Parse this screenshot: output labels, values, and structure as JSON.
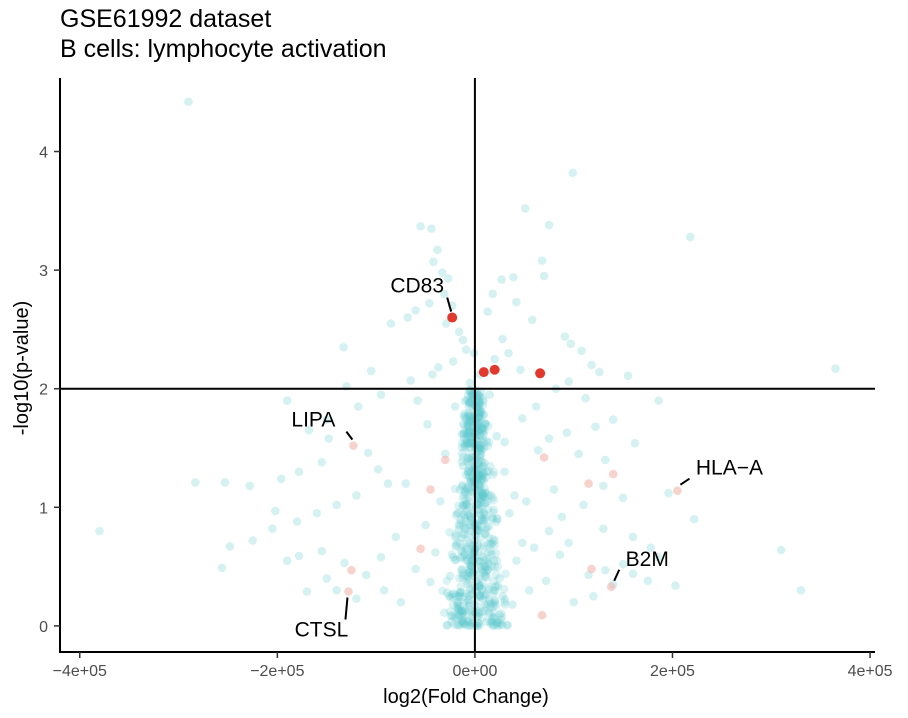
{
  "chart_data": {
    "type": "scatter",
    "title": "GSE61992 dataset",
    "subtitle": "B cells: lymphocyte activation",
    "xlabel": "log2(Fold Change)",
    "ylabel": "-log10(p-value)",
    "xlim": [
      -420000,
      405000
    ],
    "ylim": [
      -0.22,
      4.62
    ],
    "xticks": [
      -400000,
      -200000,
      0,
      200000,
      400000
    ],
    "xtick_labels": [
      "−4e+05",
      "−2e+05",
      "0e+00",
      "2e+05",
      "4e+05"
    ],
    "yticks": [
      0,
      1,
      2,
      3,
      4
    ],
    "ytick_labels": [
      "0",
      "1",
      "2",
      "3",
      "4"
    ],
    "reference_lines": {
      "vertical_x": 0,
      "horizontal_y": 2
    },
    "colors": {
      "background_points": "#5bc8cc",
      "highlight": "#e03a2e",
      "highlight_faint": "#f2b5ae"
    },
    "series": [
      {
        "role": "background",
        "points": [
          [
            -290000,
            4.42
          ],
          [
            99000,
            3.82
          ],
          [
            218000,
            3.28
          ],
          [
            51000,
            3.52
          ],
          [
            75000,
            3.38
          ],
          [
            -55000,
            3.37
          ],
          [
            -44000,
            3.35
          ],
          [
            -38000,
            3.17
          ],
          [
            -42000,
            3.07
          ],
          [
            -33000,
            2.98
          ],
          [
            -27000,
            2.93
          ],
          [
            -31000,
            2.8
          ],
          [
            -46000,
            2.72
          ],
          [
            -60000,
            2.66
          ],
          [
            -68000,
            2.6
          ],
          [
            -85000,
            2.55
          ],
          [
            -29000,
            2.55
          ],
          [
            -23000,
            2.7
          ],
          [
            -16000,
            2.48
          ],
          [
            -12000,
            2.41
          ],
          [
            -133000,
            2.35
          ],
          [
            -9000,
            2.33
          ],
          [
            -22000,
            2.23
          ],
          [
            -105000,
            2.15
          ],
          [
            -43000,
            2.12
          ],
          [
            -65000,
            2.07
          ],
          [
            -95000,
            1.95
          ],
          [
            -130000,
            2.02
          ],
          [
            -118000,
            1.85
          ],
          [
            -150000,
            1.74
          ],
          [
            -190000,
            1.9
          ],
          [
            -168000,
            1.65
          ],
          [
            -148000,
            1.58
          ],
          [
            -108000,
            1.46
          ],
          [
            -98000,
            1.32
          ],
          [
            -155000,
            1.38
          ],
          [
            -178000,
            1.3
          ],
          [
            -196000,
            1.24
          ],
          [
            -88000,
            1.2
          ],
          [
            -120000,
            1.1
          ],
          [
            -140000,
            1.02
          ],
          [
            -160000,
            0.95
          ],
          [
            -180000,
            0.88
          ],
          [
            -205000,
            0.82
          ],
          [
            -225000,
            0.72
          ],
          [
            -248000,
            0.67
          ],
          [
            -256000,
            0.49
          ],
          [
            -283000,
            1.21
          ],
          [
            -253000,
            1.21
          ],
          [
            -228000,
            1.18
          ],
          [
            -202000,
            0.97
          ],
          [
            -178000,
            0.59
          ],
          [
            -155000,
            0.63
          ],
          [
            -132000,
            0.53
          ],
          [
            -110000,
            0.43
          ],
          [
            -92000,
            0.3
          ],
          [
            -75000,
            0.2
          ],
          [
            -60000,
            0.48
          ],
          [
            -45000,
            0.37
          ],
          [
            -380000,
            0.8
          ],
          [
            -170000,
            0.29
          ],
          [
            -140000,
            0.3
          ],
          [
            -120000,
            0.23
          ],
          [
            -150000,
            0.4
          ],
          [
            -190000,
            0.55
          ],
          [
            39000,
            2.94
          ],
          [
            27000,
            2.92
          ],
          [
            18000,
            2.8
          ],
          [
            13000,
            2.65
          ],
          [
            68000,
            3.08
          ],
          [
            70000,
            2.95
          ],
          [
            42000,
            2.73
          ],
          [
            58000,
            2.58
          ],
          [
            91000,
            2.44
          ],
          [
            97000,
            2.38
          ],
          [
            108000,
            2.32
          ],
          [
            118000,
            2.2
          ],
          [
            126000,
            2.14
          ],
          [
            155000,
            2.11
          ],
          [
            95000,
            2.06
          ],
          [
            82000,
            2.0
          ],
          [
            112000,
            1.92
          ],
          [
            140000,
            1.74
          ],
          [
            122000,
            1.68
          ],
          [
            93000,
            1.63
          ],
          [
            75000,
            1.58
          ],
          [
            64000,
            1.48
          ],
          [
            105000,
            1.45
          ],
          [
            132000,
            1.4
          ],
          [
            162000,
            1.54
          ],
          [
            186000,
            1.9
          ],
          [
            196000,
            1.12
          ],
          [
            222000,
            0.9
          ],
          [
            150000,
            1.08
          ],
          [
            130000,
            1.18
          ],
          [
            110000,
            1.02
          ],
          [
            88000,
            0.92
          ],
          [
            75000,
            0.8
          ],
          [
            130000,
            0.82
          ],
          [
            160000,
            0.75
          ],
          [
            178000,
            0.66
          ],
          [
            185000,
            0.58
          ],
          [
            150000,
            0.52
          ],
          [
            132000,
            0.47
          ],
          [
            115000,
            0.43
          ],
          [
            160000,
            0.44
          ],
          [
            175000,
            0.38
          ],
          [
            140000,
            0.35
          ],
          [
            120000,
            0.25
          ],
          [
            100000,
            0.2
          ],
          [
            310000,
            0.64
          ],
          [
            330000,
            0.3
          ],
          [
            365000,
            2.17
          ],
          [
            203000,
            0.34
          ],
          [
            86000,
            0.6
          ],
          [
            60000,
            0.66
          ],
          [
            48000,
            0.7
          ],
          [
            72000,
            0.38
          ],
          [
            55000,
            0.3
          ],
          [
            38000,
            0.18
          ],
          [
            30000,
            1.3
          ],
          [
            22000,
            1.6
          ],
          [
            15000,
            1.95
          ],
          [
            34000,
            2.3
          ],
          [
            46000,
            2.16
          ],
          [
            20000,
            2.25
          ],
          [
            28000,
            2.42
          ],
          [
            62000,
            1.85
          ],
          [
            40000,
            1.1
          ],
          [
            52000,
            1.05
          ],
          [
            -5000,
            2.05
          ],
          [
            5000,
            2.12
          ],
          [
            -3000,
            1.75
          ],
          [
            6000,
            1.8
          ],
          [
            -8000,
            1.55
          ],
          [
            9000,
            1.5
          ],
          [
            -12000,
            1.35
          ],
          [
            12000,
            1.3
          ],
          [
            -15000,
            1.15
          ],
          [
            14000,
            1.1
          ],
          [
            -18000,
            0.95
          ],
          [
            18000,
            0.9
          ],
          [
            -20000,
            0.75
          ],
          [
            20000,
            0.72
          ],
          [
            -22000,
            0.58
          ],
          [
            22000,
            0.55
          ],
          [
            -25000,
            0.42
          ],
          [
            25000,
            0.4
          ],
          [
            -28000,
            0.28
          ],
          [
            28000,
            0.25
          ],
          [
            -2000,
            0.1
          ],
          [
            2000,
            0.08
          ],
          [
            -6000,
            0.45
          ],
          [
            6000,
            0.5
          ],
          [
            -10000,
            0.82
          ],
          [
            10000,
            0.78
          ],
          [
            -4000,
            1.22
          ],
          [
            4000,
            1.25
          ],
          [
            -7000,
            1.62
          ],
          [
            7000,
            1.66
          ],
          [
            -35000,
            1.05
          ],
          [
            35000,
            0.95
          ],
          [
            -40000,
            0.62
          ],
          [
            42000,
            0.55
          ],
          [
            -50000,
            0.85
          ],
          [
            -70000,
            1.2
          ],
          [
            -80000,
            0.75
          ],
          [
            80000,
            1.15
          ],
          [
            95000,
            0.7
          ],
          [
            -95000,
            0.58
          ],
          [
            -30000,
            1.45
          ],
          [
            30000,
            1.55
          ],
          [
            -48000,
            1.7
          ],
          [
            48000,
            1.75
          ],
          [
            -58000,
            1.9
          ],
          [
            -37000,
            2.18
          ],
          [
            -20000,
            1.85
          ],
          [
            0,
            1.4
          ],
          [
            0,
            0.65
          ],
          [
            -1000,
            2.3
          ]
        ]
      },
      {
        "role": "highlighted",
        "points": [
          [
            -23000,
            2.6
          ],
          [
            9000,
            2.14
          ],
          [
            20000,
            2.16
          ],
          [
            66000,
            2.13
          ]
        ]
      },
      {
        "role": "labelled-faint",
        "points": [
          [
            -123000,
            1.52
          ],
          [
            205000,
            1.14
          ],
          [
            138000,
            0.33
          ],
          [
            -128000,
            0.29
          ],
          [
            -30000,
            1.4
          ],
          [
            118000,
            0.48
          ],
          [
            -45000,
            1.15
          ],
          [
            70000,
            1.42
          ],
          [
            115000,
            1.2
          ],
          [
            -125000,
            0.47
          ],
          [
            68000,
            0.09
          ],
          [
            140000,
            1.28
          ],
          [
            -55000,
            0.65
          ]
        ]
      }
    ],
    "annotations": [
      {
        "text": "CD83",
        "x": -23000,
        "y": 2.6
      },
      {
        "text": "LIPA",
        "x": -123000,
        "y": 1.52
      },
      {
        "text": "HLA−A",
        "x": 205000,
        "y": 1.14
      },
      {
        "text": "B2M",
        "x": 138000,
        "y": 0.33
      },
      {
        "text": "CTSL",
        "x": -128000,
        "y": 0.29
      }
    ]
  }
}
